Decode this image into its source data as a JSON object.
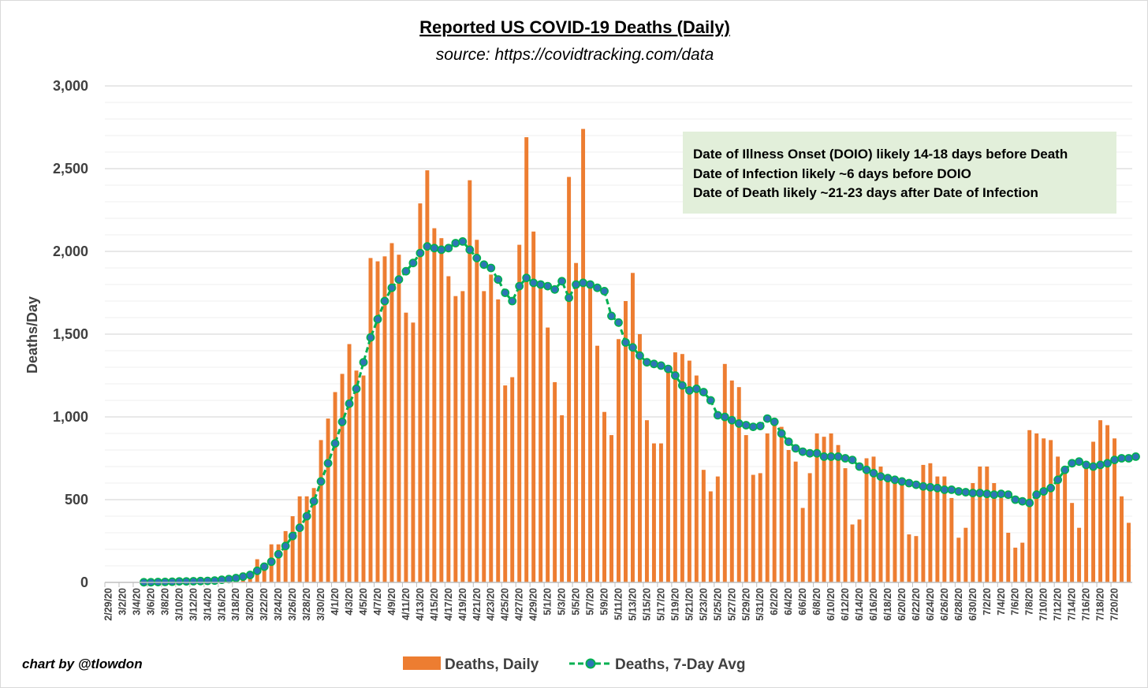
{
  "chart_data": {
    "type": "bar",
    "title": "Reported US COVID-19 Deaths (Daily)",
    "subtitle": "source: https://covidtracking.com/data",
    "xlabel": "",
    "ylabel": "Deaths/Day",
    "ylim": [
      0,
      3000
    ],
    "y_ticks": [
      0,
      500,
      1000,
      1500,
      2000,
      2500,
      3000
    ],
    "y_tick_labels": [
      "0",
      "500",
      "1,000",
      "1,500",
      "2,000",
      "2,500",
      "3,000"
    ],
    "grid": true,
    "legend_position": "bottom",
    "annotation_lines": [
      "Date of Illness Onset (DOIO) likely 14-18 days before Death",
      "Date of Infection likely ~6 days before DOIO",
      "Date of Death likely ~21-23 days after Date of Infection"
    ],
    "credit": "chart by @tlowdon",
    "colors": {
      "bars": "#ED7D31",
      "avg_line": "#00B050",
      "avg_marker": "#2E75B6",
      "grid": "#d9d9d9",
      "note_bg": "#E2EFDA"
    },
    "start_date": "2020-02-29",
    "tick_labels": [
      "2/29/20",
      "3/2/20",
      "3/4/20",
      "3/6/20",
      "3/8/20",
      "3/10/20",
      "3/12/20",
      "3/14/20",
      "3/16/20",
      "3/18/20",
      "3/20/20",
      "3/22/20",
      "3/24/20",
      "3/26/20",
      "3/28/20",
      "3/30/20",
      "4/1/20",
      "4/3/20",
      "4/5/20",
      "4/7/20",
      "4/9/20",
      "4/11/20",
      "4/13/20",
      "4/15/20",
      "4/17/20",
      "4/19/20",
      "4/21/20",
      "4/23/20",
      "4/25/20",
      "4/27/20",
      "4/29/20",
      "5/1/20",
      "5/3/20",
      "5/5/20",
      "5/7/20",
      "5/9/20",
      "5/11/20",
      "5/13/20",
      "5/15/20",
      "5/17/20",
      "5/19/20",
      "5/21/20",
      "5/23/20",
      "5/25/20",
      "5/27/20",
      "5/29/20",
      "5/31/20",
      "6/2/20",
      "6/4/20",
      "6/6/20",
      "6/8/20",
      "6/10/20",
      "6/12/20",
      "6/14/20",
      "6/16/20",
      "6/18/20",
      "6/20/20",
      "6/22/20",
      "6/24/20",
      "6/26/20",
      "6/28/20",
      "6/30/20",
      "7/2/20",
      "7/4/20",
      "7/6/20",
      "7/8/20",
      "7/10/20",
      "7/12/20",
      "7/14/20",
      "7/16/20",
      "7/18/20",
      "7/20/20"
    ],
    "series": [
      {
        "name": "Deaths, Daily",
        "values": [
          0,
          0,
          0,
          0,
          0,
          2,
          2,
          3,
          5,
          7,
          9,
          10,
          11,
          8,
          13,
          17,
          20,
          30,
          40,
          60,
          60,
          140,
          90,
          230,
          230,
          310,
          400,
          520,
          520,
          570,
          860,
          990,
          1150,
          1260,
          1440,
          1280,
          1250,
          1960,
          1940,
          1970,
          2050,
          1980,
          1630,
          1570,
          2290,
          2490,
          2140,
          2080,
          1850,
          1730,
          1760,
          2430,
          2070,
          1760,
          1860,
          1710,
          1190,
          1240,
          2040,
          2690,
          2120,
          1790,
          1540,
          1210,
          1010,
          2450,
          1930,
          2740,
          1780,
          1430,
          1030,
          890,
          1470,
          1700,
          1870,
          1500,
          980,
          840,
          840,
          1300,
          1390,
          1380,
          1340,
          1250,
          680,
          550,
          640,
          1320,
          1220,
          1180,
          890,
          650,
          660,
          900,
          990,
          940,
          800,
          730,
          450,
          660,
          900,
          880,
          900,
          830,
          690,
          350,
          380,
          750,
          760,
          700,
          650,
          610,
          600,
          290,
          280,
          710,
          720,
          640,
          640,
          510,
          270,
          330,
          600,
          700,
          700,
          600,
          510,
          300,
          210,
          240,
          920,
          900,
          870,
          860,
          760,
          700,
          480,
          330,
          720,
          850,
          980,
          950,
          870,
          520,
          360
        ]
      },
      {
        "name": "Deaths, 7-Day Avg",
        "start_index": 5,
        "values": [
          1,
          1,
          2,
          3,
          4,
          6,
          6,
          7,
          8,
          9,
          11,
          16,
          20,
          26,
          35,
          45,
          70,
          95,
          125,
          170,
          220,
          280,
          330,
          400,
          490,
          610,
          720,
          840,
          970,
          1080,
          1170,
          1330,
          1480,
          1590,
          1700,
          1780,
          1830,
          1880,
          1930,
          1990,
          2030,
          2020,
          2010,
          2020,
          2050,
          2060,
          2010,
          1960,
          1920,
          1900,
          1830,
          1750,
          1700,
          1790,
          1840,
          1810,
          1800,
          1790,
          1770,
          1820,
          1720,
          1800,
          1810,
          1800,
          1780,
          1760,
          1610,
          1570,
          1450,
          1420,
          1370,
          1330,
          1320,
          1310,
          1290,
          1250,
          1190,
          1160,
          1170,
          1150,
          1100,
          1010,
          1000,
          980,
          960,
          950,
          940,
          945,
          990,
          970,
          900,
          850,
          810,
          790,
          780,
          780,
          760,
          760,
          760,
          750,
          740,
          700,
          680,
          660,
          640,
          630,
          620,
          610,
          600,
          590,
          580,
          575,
          570,
          560,
          560,
          550,
          545,
          540,
          540,
          535,
          530,
          535,
          530,
          500,
          490,
          480,
          530,
          550,
          570,
          620,
          680,
          720,
          730,
          710,
          700,
          710,
          720,
          740,
          750,
          750,
          760
        ]
      }
    ]
  }
}
